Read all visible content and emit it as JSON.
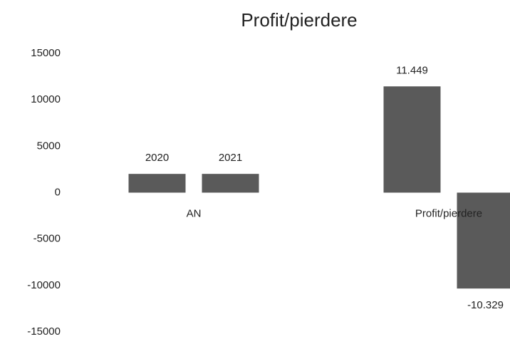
{
  "chart_data": {
    "type": "bar",
    "title": "Profit/pierdere",
    "categories": [
      "AN",
      "Profit/pierdere"
    ],
    "series": [
      {
        "color": "#5a5a5a",
        "values": [
          2020,
          11449
        ],
        "value_labels": [
          "2020",
          "11.449"
        ]
      },
      {
        "color": "#5a5a5a",
        "values": [
          2021,
          -10329
        ],
        "value_labels": [
          "2021",
          "-10.329"
        ]
      }
    ],
    "ylim": [
      -15000,
      15000
    ],
    "yticks": [
      -15000,
      -10000,
      -5000,
      0,
      5000,
      10000,
      15000
    ],
    "grid": false
  }
}
